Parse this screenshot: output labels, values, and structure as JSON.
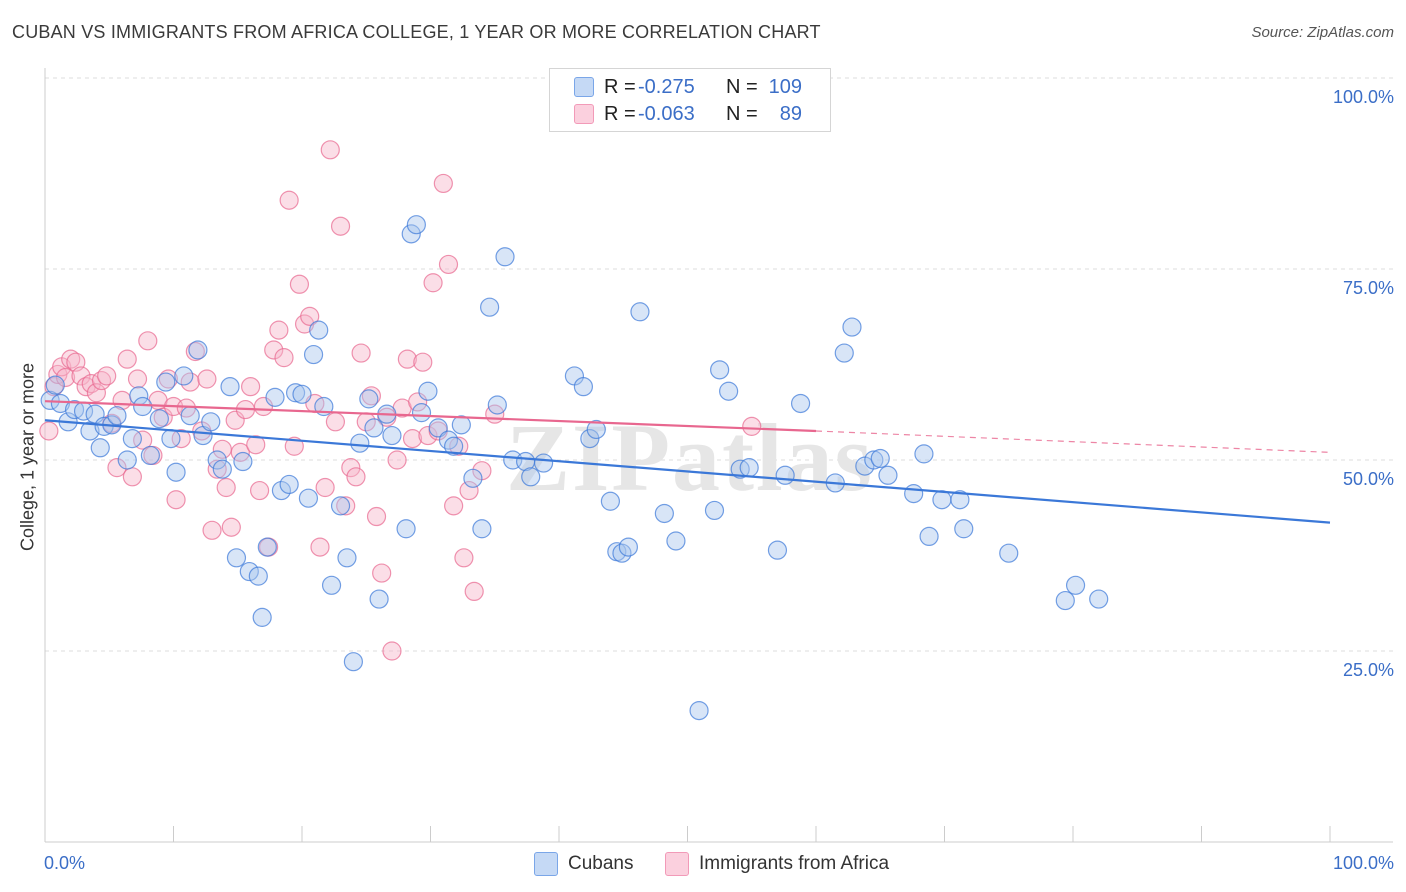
{
  "title": "CUBAN VS IMMIGRANTS FROM AFRICA COLLEGE, 1 YEAR OR MORE CORRELATION CHART",
  "source": "Source: ZipAtlas.com",
  "watermark": "ZIPatlas",
  "legend": {
    "rows": [
      {
        "r_label": "R =",
        "r_value": "-0.275",
        "n_label": "N =",
        "n_value": "109",
        "color": "#7aa6e8",
        "fill": "#c5d9f5"
      },
      {
        "r_label": "R =",
        "r_value": "-0.063",
        "n_label": "N =",
        "n_value": "89",
        "color": "#f29ab8",
        "fill": "#fbd0de"
      }
    ]
  },
  "bottom_legend": [
    "Cubans",
    "Immigrants from Africa"
  ],
  "axes": {
    "ylabel": "College, 1 year or more",
    "x_min_label": "0.0%",
    "x_max_label": "100.0%",
    "y_ticks": [
      "100.0%",
      "75.0%",
      "50.0%",
      "25.0%"
    ]
  },
  "chart_data": {
    "type": "scatter",
    "xlabel": "",
    "ylabel": "College, 1 year or more",
    "xlim": [
      0,
      100
    ],
    "ylim": [
      0,
      100
    ],
    "grid": true,
    "series": [
      {
        "name": "Cubans",
        "color": "#3b78d8",
        "fill": "#a9c6ee",
        "trend": {
          "x": [
            0,
            100
          ],
          "y": [
            55.2,
            41.8
          ],
          "dashed_from": null
        },
        "points": [
          [
            0.4,
            57.8
          ],
          [
            0.8,
            59.8
          ],
          [
            1.2,
            57.4
          ],
          [
            1.8,
            55.0
          ],
          [
            2.3,
            56.6
          ],
          [
            3.0,
            56.4
          ],
          [
            3.5,
            53.8
          ],
          [
            3.9,
            56.0
          ],
          [
            4.3,
            51.6
          ],
          [
            4.6,
            54.4
          ],
          [
            5.2,
            54.6
          ],
          [
            5.6,
            55.8
          ],
          [
            6.4,
            50.0
          ],
          [
            6.8,
            52.8
          ],
          [
            7.3,
            58.4
          ],
          [
            7.6,
            57.0
          ],
          [
            8.2,
            50.6
          ],
          [
            8.9,
            55.4
          ],
          [
            9.4,
            60.2
          ],
          [
            9.8,
            52.8
          ],
          [
            10.2,
            48.4
          ],
          [
            10.8,
            61.0
          ],
          [
            11.3,
            55.8
          ],
          [
            11.9,
            64.4
          ],
          [
            12.3,
            53.2
          ],
          [
            12.9,
            55.0
          ],
          [
            13.4,
            50.0
          ],
          [
            13.8,
            48.8
          ],
          [
            14.4,
            59.6
          ],
          [
            14.9,
            37.2
          ],
          [
            15.4,
            49.8
          ],
          [
            15.9,
            35.4
          ],
          [
            16.6,
            34.8
          ],
          [
            16.9,
            29.4
          ],
          [
            17.3,
            38.6
          ],
          [
            17.9,
            58.2
          ],
          [
            18.4,
            46.0
          ],
          [
            19.0,
            46.8
          ],
          [
            19.5,
            58.8
          ],
          [
            20.0,
            58.6
          ],
          [
            20.5,
            45.0
          ],
          [
            20.9,
            63.8
          ],
          [
            21.3,
            67.0
          ],
          [
            21.7,
            57.0
          ],
          [
            22.3,
            33.6
          ],
          [
            23.0,
            44.0
          ],
          [
            23.5,
            37.2
          ],
          [
            24.0,
            23.6
          ],
          [
            24.5,
            52.2
          ],
          [
            25.2,
            58.0
          ],
          [
            25.6,
            54.2
          ],
          [
            26.0,
            31.8
          ],
          [
            26.6,
            56.0
          ],
          [
            27.0,
            53.2
          ],
          [
            28.1,
            41.0
          ],
          [
            28.5,
            79.6
          ],
          [
            28.9,
            80.8
          ],
          [
            29.3,
            56.2
          ],
          [
            29.8,
            59.0
          ],
          [
            30.6,
            54.2
          ],
          [
            31.4,
            52.6
          ],
          [
            31.8,
            51.8
          ],
          [
            32.4,
            54.6
          ],
          [
            33.3,
            47.6
          ],
          [
            34.0,
            41.0
          ],
          [
            34.6,
            70.0
          ],
          [
            35.2,
            57.2
          ],
          [
            35.8,
            76.6
          ],
          [
            36.4,
            50.0
          ],
          [
            37.4,
            49.8
          ],
          [
            37.8,
            47.8
          ],
          [
            38.8,
            49.6
          ],
          [
            41.2,
            61.0
          ],
          [
            41.9,
            59.6
          ],
          [
            42.4,
            52.8
          ],
          [
            42.9,
            54.0
          ],
          [
            44.0,
            44.6
          ],
          [
            44.5,
            38.0
          ],
          [
            44.9,
            37.8
          ],
          [
            45.4,
            38.6
          ],
          [
            46.3,
            69.4
          ],
          [
            48.2,
            43.0
          ],
          [
            49.1,
            39.4
          ],
          [
            50.9,
            17.2
          ],
          [
            52.1,
            43.4
          ],
          [
            52.5,
            61.8
          ],
          [
            53.2,
            59.0
          ],
          [
            54.1,
            48.8
          ],
          [
            54.8,
            49.0
          ],
          [
            57.0,
            38.2
          ],
          [
            57.6,
            48.0
          ],
          [
            58.8,
            57.4
          ],
          [
            61.5,
            47.0
          ],
          [
            62.2,
            64.0
          ],
          [
            62.8,
            67.4
          ],
          [
            63.8,
            49.2
          ],
          [
            64.5,
            50.0
          ],
          [
            65.0,
            50.2
          ],
          [
            65.6,
            48.0
          ],
          [
            67.6,
            45.6
          ],
          [
            68.4,
            50.8
          ],
          [
            68.8,
            40.0
          ],
          [
            69.8,
            44.8
          ],
          [
            71.2,
            44.8
          ],
          [
            71.5,
            41.0
          ],
          [
            75.0,
            37.8
          ],
          [
            79.4,
            31.6
          ],
          [
            80.2,
            33.6
          ],
          [
            82.0,
            31.8
          ]
        ]
      },
      {
        "name": "Immigrants from Africa",
        "color": "#e8678f",
        "fill": "#f7b6ca",
        "trend": {
          "x": [
            0,
            60
          ],
          "y": [
            57.7,
            53.8
          ],
          "dashed_to": [
            100,
            51.0
          ]
        },
        "points": [
          [
            0.3,
            53.8
          ],
          [
            0.7,
            59.6
          ],
          [
            1.0,
            61.2
          ],
          [
            1.3,
            62.2
          ],
          [
            1.6,
            60.8
          ],
          [
            2.0,
            63.2
          ],
          [
            2.4,
            62.8
          ],
          [
            2.8,
            61.0
          ],
          [
            3.2,
            59.6
          ],
          [
            3.6,
            60.0
          ],
          [
            4.0,
            58.8
          ],
          [
            4.4,
            60.4
          ],
          [
            4.8,
            61.0
          ],
          [
            5.2,
            54.8
          ],
          [
            5.6,
            49.0
          ],
          [
            6.0,
            57.8
          ],
          [
            6.4,
            63.2
          ],
          [
            6.8,
            47.8
          ],
          [
            7.2,
            60.6
          ],
          [
            7.6,
            52.6
          ],
          [
            8.0,
            65.6
          ],
          [
            8.4,
            50.6
          ],
          [
            8.8,
            57.8
          ],
          [
            9.2,
            55.6
          ],
          [
            9.6,
            60.6
          ],
          [
            10.0,
            57.0
          ],
          [
            10.2,
            44.8
          ],
          [
            10.6,
            52.8
          ],
          [
            11.0,
            56.8
          ],
          [
            11.3,
            60.2
          ],
          [
            11.7,
            64.2
          ],
          [
            12.2,
            53.8
          ],
          [
            12.6,
            60.6
          ],
          [
            13.0,
            40.8
          ],
          [
            13.4,
            48.8
          ],
          [
            13.8,
            51.4
          ],
          [
            14.1,
            46.4
          ],
          [
            14.5,
            41.2
          ],
          [
            14.8,
            55.2
          ],
          [
            15.2,
            51.0
          ],
          [
            15.6,
            56.6
          ],
          [
            16.0,
            59.6
          ],
          [
            16.4,
            52.0
          ],
          [
            16.7,
            46.0
          ],
          [
            17.0,
            57.0
          ],
          [
            17.4,
            38.6
          ],
          [
            17.8,
            64.4
          ],
          [
            18.2,
            67.0
          ],
          [
            18.6,
            63.4
          ],
          [
            19.0,
            84.0
          ],
          [
            19.4,
            51.8
          ],
          [
            19.8,
            73.0
          ],
          [
            20.2,
            67.8
          ],
          [
            20.6,
            68.8
          ],
          [
            21.0,
            57.4
          ],
          [
            21.4,
            38.6
          ],
          [
            21.8,
            46.4
          ],
          [
            22.2,
            90.6
          ],
          [
            22.6,
            55.0
          ],
          [
            23.0,
            80.6
          ],
          [
            23.4,
            44.0
          ],
          [
            23.8,
            49.0
          ],
          [
            24.2,
            47.8
          ],
          [
            24.6,
            64.0
          ],
          [
            25.0,
            55.0
          ],
          [
            25.4,
            58.4
          ],
          [
            25.8,
            42.6
          ],
          [
            26.2,
            35.2
          ],
          [
            26.6,
            55.6
          ],
          [
            27.0,
            25.0
          ],
          [
            27.4,
            50.0
          ],
          [
            27.8,
            56.8
          ],
          [
            28.2,
            63.2
          ],
          [
            28.6,
            52.8
          ],
          [
            29.0,
            57.6
          ],
          [
            29.4,
            62.8
          ],
          [
            29.8,
            53.2
          ],
          [
            30.2,
            73.2
          ],
          [
            30.6,
            53.8
          ],
          [
            31.0,
            86.2
          ],
          [
            31.4,
            75.6
          ],
          [
            31.8,
            44.0
          ],
          [
            32.2,
            51.8
          ],
          [
            32.6,
            37.2
          ],
          [
            33.0,
            46.0
          ],
          [
            33.4,
            32.8
          ],
          [
            34.0,
            48.6
          ],
          [
            35.0,
            56.0
          ],
          [
            55.0,
            54.4
          ]
        ]
      }
    ]
  }
}
